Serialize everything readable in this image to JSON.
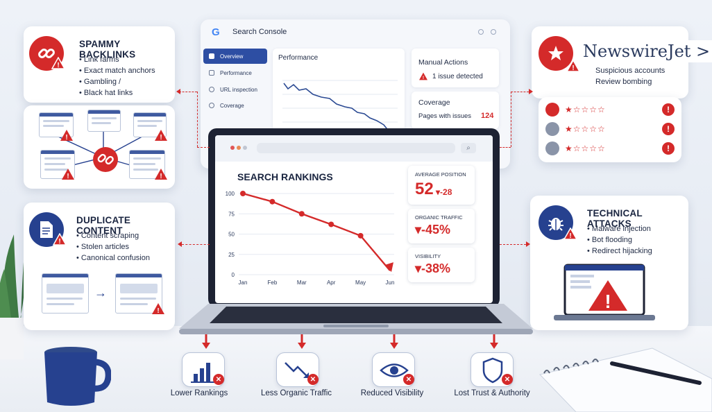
{
  "backlinks": {
    "title": "SPAMMY BACKLINKS",
    "items": [
      "Link farms",
      "Exact match anchors",
      "Gambling /",
      "Black hat links"
    ]
  },
  "duplicate": {
    "title": "DUPLICATE CONTENT",
    "items": [
      "Content scraping",
      "Stolen articles",
      "Canonical confusion"
    ]
  },
  "reviews": {
    "brand": "NewswireJet >",
    "items": [
      "Suspicious accounts",
      "Review bombing"
    ],
    "rows": [
      {
        "stars": "★☆☆☆☆"
      },
      {
        "stars": "★☆☆☆☆"
      },
      {
        "stars": "★☆☆☆☆"
      }
    ]
  },
  "technical": {
    "title": "TECHNICAL ATTACKS",
    "items": [
      "Malware injection",
      "Bot flooding",
      "Redirect hijacking"
    ]
  },
  "gsc": {
    "title": "Search Console",
    "nav": [
      "Overview",
      "Performance",
      "URL inspection",
      "Coverage"
    ],
    "performance_title": "Performance",
    "manual_title": "Manual Actions",
    "manual_text": "1 issue detected",
    "coverage_title": "Coverage",
    "coverage_label": "Pages with issues",
    "coverage_value": "124"
  },
  "screen": {
    "title": "SEARCH RANKINGS",
    "metrics": [
      {
        "label": "AVERAGE POSITION",
        "value": "52",
        "delta": "▾-28"
      },
      {
        "label": "ORGANIC TRAFFIC",
        "value": "▾-45%"
      },
      {
        "label": "VISIBILITY",
        "value": "▾-38%"
      }
    ]
  },
  "chart_data": {
    "type": "line",
    "categories": [
      "Jan",
      "Feb",
      "Mar",
      "Apr",
      "May",
      "Jun"
    ],
    "y_ticks": [
      "100",
      "75",
      "50",
      "25",
      "0"
    ],
    "series": [
      {
        "values": [
          100,
          90,
          75,
          62,
          48,
          5
        ]
      }
    ],
    "ylim": [
      0,
      100
    ],
    "color": "#d42a2a"
  },
  "impacts": [
    {
      "label": "Lower Rankings",
      "icon": "bar-chart-icon"
    },
    {
      "label": "Less Organic Traffic",
      "icon": "trend-down-icon"
    },
    {
      "label": "Reduced Visibility",
      "icon": "eye-icon"
    },
    {
      "label": "Lost Trust & Authority",
      "icon": "shield-icon"
    }
  ],
  "colors": {
    "accent": "#d42a2a",
    "navy": "#26418f"
  }
}
